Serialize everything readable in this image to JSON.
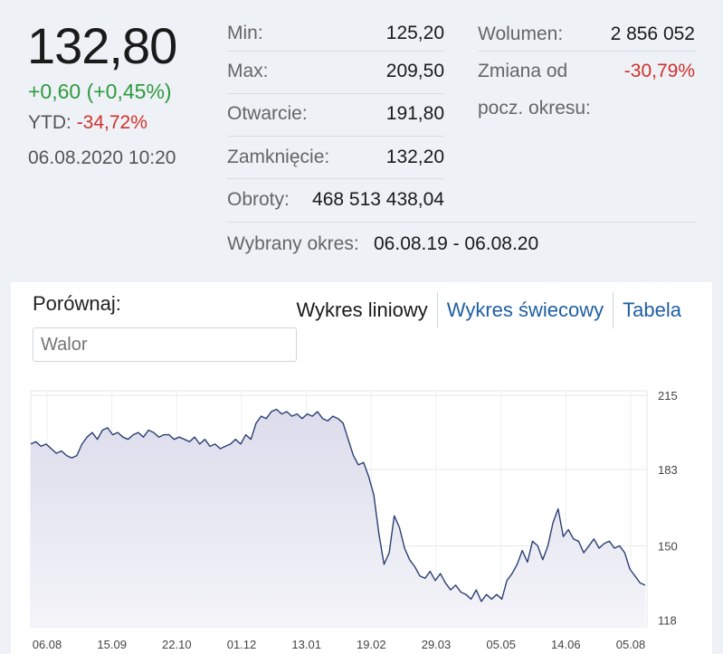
{
  "quote": {
    "price": "132,80",
    "change": "+0,60 (+0,45%)",
    "ytd_label": "YTD:",
    "ytd_value": "-34,72%",
    "datetime": "06.08.2020 10:20"
  },
  "stats": [
    {
      "label": "Min:",
      "value": "125,20"
    },
    {
      "label": "Max:",
      "value": "209,50"
    },
    {
      "label": "Otwarcie:",
      "value": "191,80"
    },
    {
      "label": "Zamknięcie:",
      "value": "132,20"
    },
    {
      "label": "Obroty:",
      "value": "468 513 438,04"
    }
  ],
  "volume": {
    "label": "Wolumen:",
    "value": "2 856 052"
  },
  "period_change": {
    "label_line1": "Zmiana od",
    "label_line2": "pocz. okresu:",
    "value": "-30,79%"
  },
  "period": {
    "label": "Wybrany okres:",
    "value": "06.08.19 - 06.08.20"
  },
  "compare": {
    "label": "Porównaj:",
    "placeholder": "Walor"
  },
  "tabs": [
    {
      "label": "Wykres liniowy",
      "active": true
    },
    {
      "label": "Wykres świecowy",
      "active": false
    },
    {
      "label": "Tabela",
      "active": false
    }
  ],
  "colors": {
    "up": "#2e9a3e",
    "down": "#d0312d",
    "line": "#2a3f73",
    "link": "#1f5fa3"
  },
  "chart_data": {
    "type": "area",
    "title": "",
    "xlabel": "",
    "ylabel": "",
    "x_tick_labels": [
      "06.08",
      "15.09",
      "22.10",
      "01.12",
      "13.01",
      "19.02",
      "29.03",
      "05.05",
      "14.06",
      "05.08"
    ],
    "y_ticks": [
      118,
      150,
      183,
      215
    ],
    "ylim": [
      115,
      217
    ],
    "grid": true,
    "series": [
      {
        "values": [
          194,
          195,
          193,
          194,
          192,
          190,
          191,
          189,
          188,
          189,
          194,
          197,
          199,
          196,
          200,
          201,
          198,
          199,
          197,
          196,
          198,
          199,
          197,
          200,
          199,
          197,
          198,
          198,
          196,
          197,
          196,
          195,
          197,
          194,
          196,
          193,
          194,
          192,
          193,
          194,
          196,
          194,
          198,
          196,
          203,
          206,
          205,
          208,
          209,
          207,
          208,
          206,
          207,
          205,
          207,
          206,
          208,
          205,
          204,
          206,
          205,
          203,
          196,
          189,
          185,
          186,
          180,
          172,
          155,
          142,
          147,
          163,
          158,
          149,
          144,
          141,
          137,
          136,
          139,
          135,
          138,
          134,
          131,
          133,
          130,
          129,
          127,
          131,
          126,
          129,
          127,
          129,
          127,
          135,
          138,
          142,
          148,
          143,
          152,
          150,
          144,
          150,
          160,
          166,
          154,
          157,
          153,
          152,
          147,
          150,
          153,
          149,
          151,
          152,
          149,
          150,
          147,
          140,
          137,
          134,
          133
        ]
      }
    ]
  }
}
